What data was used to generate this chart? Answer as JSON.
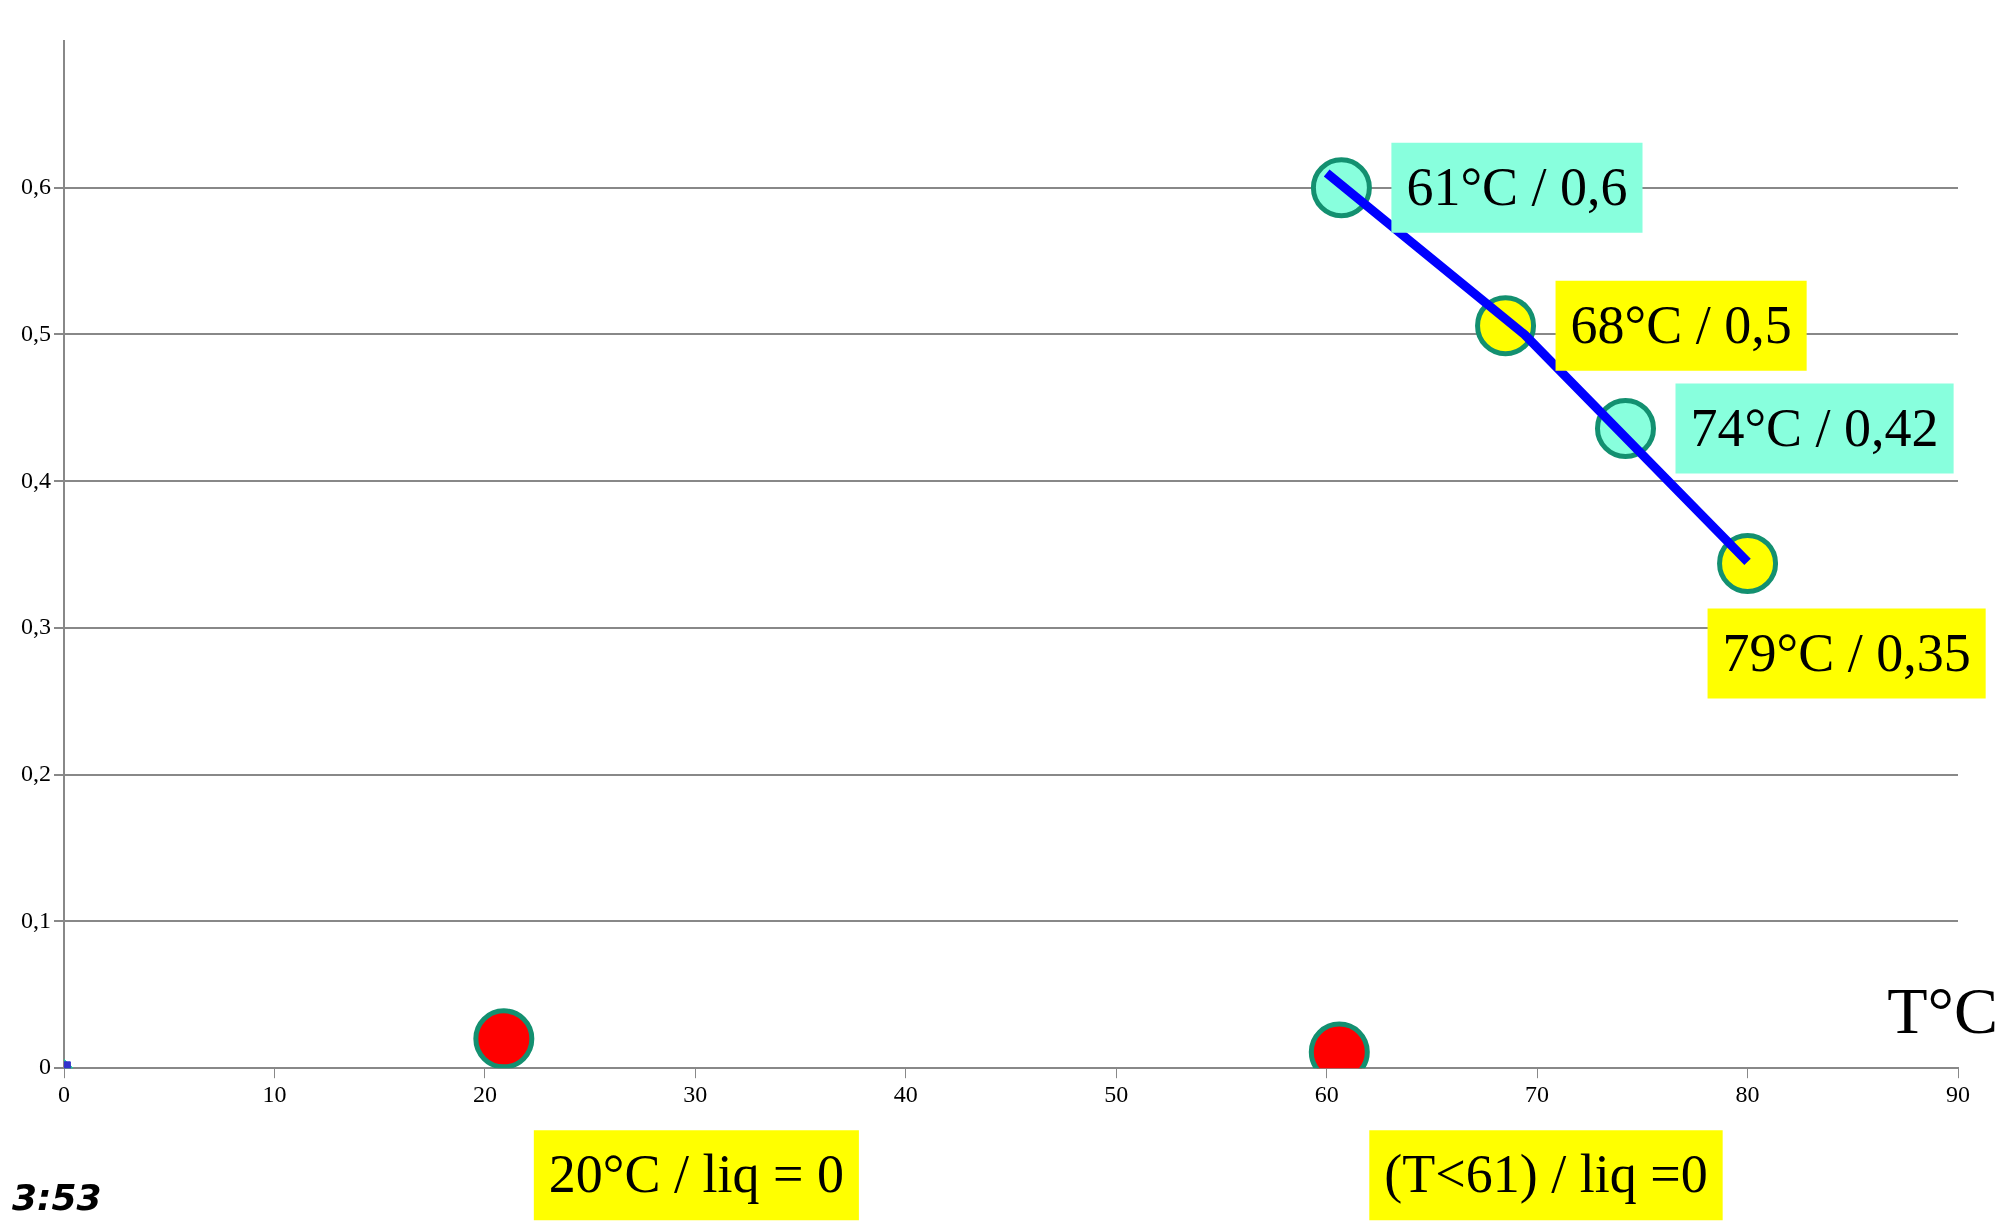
{
  "chart_data": {
    "type": "scatter",
    "xlabel": "T°C",
    "xlim": [
      0,
      90
    ],
    "xticks": [
      0,
      10,
      20,
      30,
      40,
      50,
      60,
      70,
      80,
      90
    ],
    "ylim": [
      0,
      0.7
    ],
    "yticks": [
      0,
      {
        "value": 0.1,
        "label": "0,1"
      },
      {
        "value": 0.2,
        "label": "0,2"
      },
      {
        "value": 0.3,
        "label": "0,3"
      },
      {
        "value": 0.4,
        "label": "0,4"
      },
      {
        "value": 0.5,
        "label": "0,5"
      },
      {
        "value": 0.6,
        "label": "0,6"
      }
    ],
    "grid": "y",
    "legend": false,
    "series": [
      {
        "type": "line",
        "color": "#0000ff",
        "marker": "none",
        "x": [
          60,
          69.4,
          80
        ],
        "values": [
          0.61,
          0.5,
          0.345
        ]
      },
      {
        "type": "scatter",
        "color": "#88ffdd",
        "marker": "circle",
        "x": [
          60.7,
          74.2
        ],
        "values": [
          0.6,
          0.436
        ]
      },
      {
        "type": "scatter",
        "color": "#ffff00",
        "marker": "circle",
        "x": [
          68.5,
          80
        ],
        "values": [
          0.506,
          0.344
        ]
      },
      {
        "type": "scatter",
        "color": "#ff0000",
        "marker": "circle",
        "x": [
          20.9,
          60.6
        ],
        "values": [
          0.02,
          0.011
        ]
      },
      {
        "type": "scatter",
        "color": "#3333cc",
        "marker": "square",
        "x": [
          0
        ],
        "values": [
          0
        ]
      },
      {
        "type": "scatter",
        "color": "#22cc99",
        "marker": "diamond",
        "x": [
          0
        ],
        "values": [
          0
        ]
      }
    ],
    "annotations": [
      {
        "text": "61°C / 0,6",
        "x": 60.7,
        "y": 0.6
      },
      {
        "text": "68°C / 0,5",
        "x": 68.5,
        "y": 0.506
      },
      {
        "text": "74°C / 0,42",
        "x": 74.2,
        "y": 0.436
      },
      {
        "text": "79°C / 0,35",
        "x": 80,
        "y": 0.344
      },
      {
        "text": "20°C / liq = 0",
        "x": 20.9,
        "y": 0.02
      },
      {
        "text": "(T<61) / liq =0",
        "x": 60.6,
        "y": 0.011
      },
      "3:53"
    ]
  }
}
